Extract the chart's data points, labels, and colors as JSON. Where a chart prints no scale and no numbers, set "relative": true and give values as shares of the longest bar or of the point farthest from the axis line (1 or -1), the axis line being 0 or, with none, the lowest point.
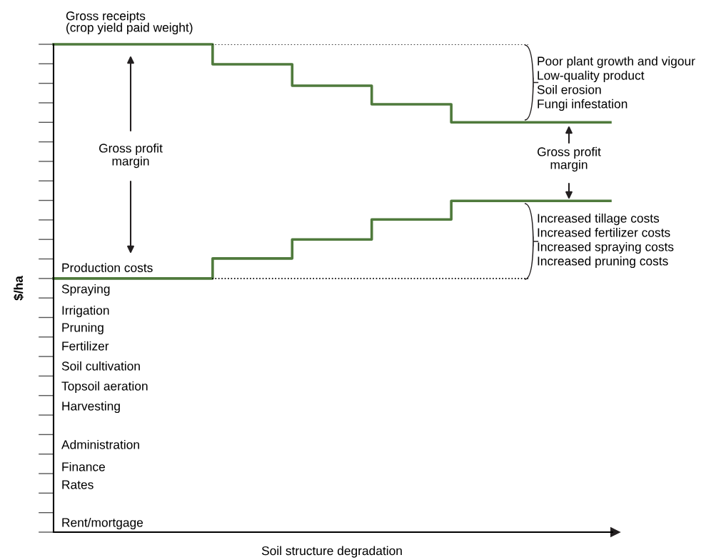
{
  "chart_data": {
    "type": "step",
    "relative": true,
    "xlabel": "Soil structure degradation",
    "ylabel": "$/ha",
    "categories": [
      null,
      null,
      null,
      null,
      null,
      null,
      null,
      null
    ],
    "series": [
      {
        "name": "Gross receipts\n(crop yield paid weight)",
        "color": "#4f7a3c",
        "values": [
          1.0,
          1.0,
          0.959,
          0.915,
          0.877,
          0.84,
          0.84,
          0.84
        ]
      },
      {
        "name": "Production costs",
        "color": "#4f7a3c",
        "values": [
          0.52,
          0.52,
          0.561,
          0.6,
          0.641,
          0.679,
          0.679,
          0.679
        ]
      }
    ],
    "ref_lines": [
      {
        "axis": "y",
        "value": 1.0,
        "line_style": "dotted",
        "color": "#000000"
      },
      {
        "axis": "y",
        "value": 0.52,
        "line_style": "dotted",
        "color": "#000000"
      }
    ],
    "annotations": [
      "Gross profit\nmargin",
      "Gross profit\nmargin",
      "Poor plant growth and vigour\nLow-quality product\nSoil erosion\nFungi infestation",
      "Increased tillage costs\nIncreased fertilizer costs\nIncreased spraying costs\nIncreased pruning costs",
      "Spraying",
      "Irrigation",
      "Pruning",
      "Fertilizer",
      "Soil cultivation",
      "Topsoil aeration",
      "Harvesting",
      "Administration",
      "Finance",
      "Rates",
      "Rent/mortgage"
    ],
    "grid": false,
    "legend": false,
    "line_style": "solid",
    "marker": "none"
  }
}
